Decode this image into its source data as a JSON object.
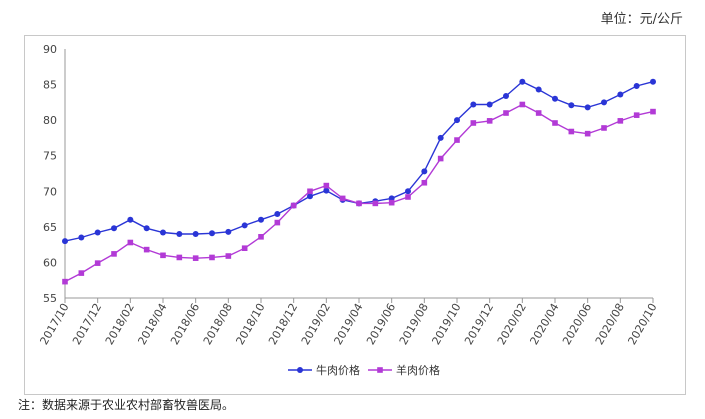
{
  "chart_data": {
    "type": "line",
    "unit_label": "单位：元/公斤",
    "note": "注：数据来源于农业农村部畜牧兽医局。",
    "ylim": [
      55,
      90
    ],
    "yticks": [
      55,
      60,
      65,
      70,
      75,
      80,
      85,
      90
    ],
    "legend_position": "bottom",
    "grid": false,
    "categories": [
      "2017/10",
      "2017/11",
      "2017/12",
      "2018/01",
      "2018/02",
      "2018/03",
      "2018/04",
      "2018/05",
      "2018/06",
      "2018/07",
      "2018/08",
      "2018/09",
      "2018/10",
      "2018/11",
      "2018/12",
      "2019/01",
      "2019/02",
      "2019/03",
      "2019/04",
      "2019/05",
      "2019/06",
      "2019/07",
      "2019/08",
      "2019/09",
      "2019/10",
      "2019/11",
      "2019/12",
      "2020/01",
      "2020/02",
      "2020/03",
      "2020/04",
      "2020/05",
      "2020/06",
      "2020/07",
      "2020/08",
      "2020/09",
      "2020/10"
    ],
    "tick_labels": [
      "2017/10",
      "2017/12",
      "2018/02",
      "2018/04",
      "2018/06",
      "2018/08",
      "2018/10",
      "2018/12",
      "2019/02",
      "2019/04",
      "2019/06",
      "2019/08",
      "2019/10",
      "2019/12",
      "2020/02",
      "2020/04",
      "2020/06",
      "2020/08",
      "2020/10"
    ],
    "series": [
      {
        "name": "牛肉价格",
        "color": "#2a35d6",
        "marker": "circle",
        "values": [
          63.0,
          63.5,
          64.2,
          64.8,
          66.0,
          64.8,
          64.2,
          64.0,
          64.0,
          64.1,
          64.3,
          65.2,
          66.0,
          66.8,
          68.0,
          69.3,
          70.1,
          68.8,
          68.3,
          68.6,
          69.0,
          70.0,
          72.8,
          77.5,
          80.0,
          82.2,
          82.2,
          83.4,
          85.4,
          84.3,
          83.0,
          82.1,
          81.8,
          82.5,
          83.6,
          84.8,
          85.4
        ]
      },
      {
        "name": "羊肉价格",
        "color": "#b23ad6",
        "marker": "square",
        "values": [
          57.3,
          58.5,
          59.9,
          61.2,
          62.8,
          61.8,
          61.0,
          60.7,
          60.6,
          60.7,
          60.9,
          62.0,
          63.6,
          65.6,
          68.0,
          70.0,
          70.8,
          69.0,
          68.3,
          68.3,
          68.4,
          69.2,
          71.2,
          74.6,
          77.2,
          79.6,
          79.9,
          81.0,
          82.2,
          81.0,
          79.6,
          78.4,
          78.1,
          78.9,
          79.9,
          80.7,
          81.2
        ]
      }
    ]
  }
}
